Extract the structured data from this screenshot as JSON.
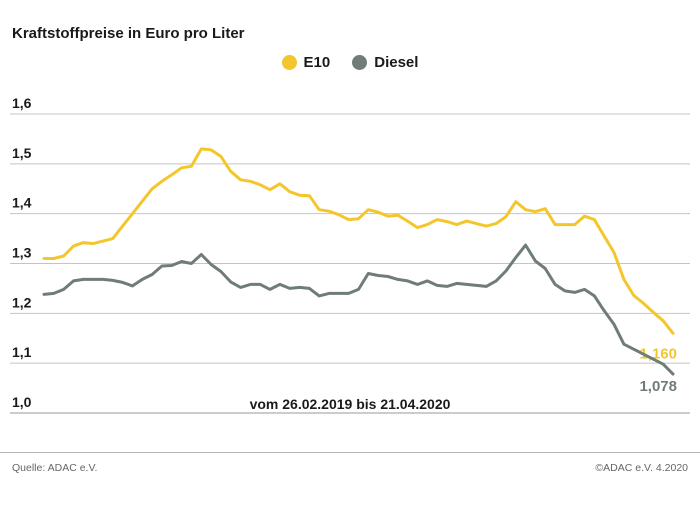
{
  "chart_data": {
    "type": "line",
    "title": "Kraftstoffpreise in Euro pro Liter",
    "subtitle": "vom 26.02.2019 bis 21.04.2020",
    "ylim": [
      1.0,
      1.6
    ],
    "yticks": [
      "1,0",
      "1,1",
      "1,2",
      "1,3",
      "1,4",
      "1,5",
      "1,6"
    ],
    "grid": true,
    "legend_position": "top-center",
    "series": [
      {
        "name": "E10",
        "color": "#f3c72c",
        "end_label": "1,160",
        "values": [
          1.31,
          1.31,
          1.315,
          1.335,
          1.342,
          1.34,
          1.345,
          1.35,
          1.375,
          1.4,
          1.425,
          1.45,
          1.465,
          1.478,
          1.492,
          1.495,
          1.53,
          1.528,
          1.515,
          1.485,
          1.468,
          1.465,
          1.458,
          1.448,
          1.46,
          1.444,
          1.437,
          1.436,
          1.408,
          1.405,
          1.398,
          1.388,
          1.39,
          1.408,
          1.403,
          1.395,
          1.397,
          1.385,
          1.372,
          1.378,
          1.388,
          1.384,
          1.378,
          1.385,
          1.38,
          1.375,
          1.38,
          1.394,
          1.424,
          1.408,
          1.404,
          1.41,
          1.378,
          1.378,
          1.378,
          1.395,
          1.388,
          1.355,
          1.322,
          1.268,
          1.236,
          1.22,
          1.202,
          1.185,
          1.16
        ]
      },
      {
        "name": "Diesel",
        "color": "#6f7d76",
        "end_label": "1,078",
        "values": [
          1.238,
          1.24,
          1.248,
          1.265,
          1.268,
          1.268,
          1.268,
          1.266,
          1.262,
          1.255,
          1.268,
          1.278,
          1.295,
          1.296,
          1.304,
          1.3,
          1.318,
          1.298,
          1.284,
          1.263,
          1.252,
          1.258,
          1.258,
          1.248,
          1.258,
          1.25,
          1.252,
          1.25,
          1.235,
          1.24,
          1.24,
          1.24,
          1.248,
          1.28,
          1.276,
          1.274,
          1.268,
          1.265,
          1.258,
          1.265,
          1.256,
          1.254,
          1.26,
          1.258,
          1.256,
          1.254,
          1.265,
          1.285,
          1.312,
          1.337,
          1.305,
          1.29,
          1.258,
          1.245,
          1.242,
          1.248,
          1.235,
          1.205,
          1.178,
          1.138,
          1.128,
          1.118,
          1.108,
          1.098,
          1.078
        ]
      }
    ]
  },
  "footer": {
    "source": "Quelle: ADAC e.V.",
    "copyright": "©ADAC e.V. 4.2020"
  }
}
